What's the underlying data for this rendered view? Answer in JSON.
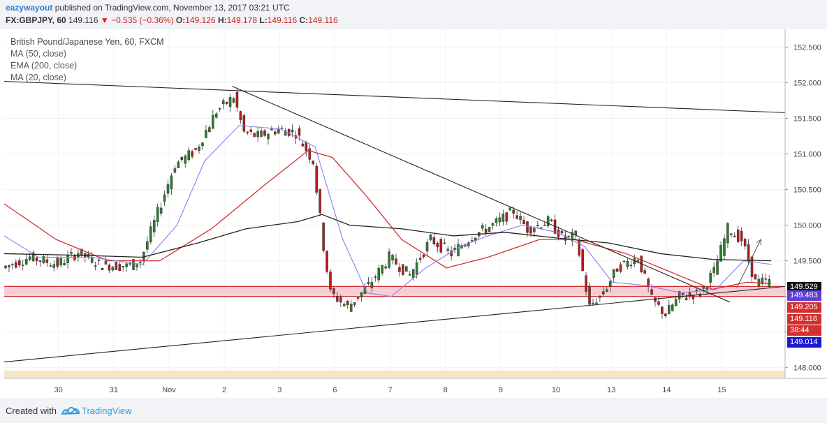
{
  "header": {
    "author": "eazywayout",
    "published_text": "published on TradingView.com, November 13, 2017 03:21 UTC",
    "symbol": "FX:GBPJPY, 60",
    "last": "149.116",
    "change": "−0.535 (−0.36%)",
    "o_label": "O:",
    "o_value": "149.126",
    "h_label": "H:",
    "h_value": "149.178",
    "l_label": "L:",
    "l_value": "149.116",
    "c_label": "C:",
    "c_value": "149.116"
  },
  "legend": {
    "title": "British Pound/Japanese Yen, 60, FXCM",
    "items": [
      "MA (50, close)",
      "EMA (200, close)",
      "MA (20, close)"
    ]
  },
  "footer": {
    "created_with": "Created with",
    "brand": "TradingView"
  },
  "colors": {
    "up": "#2e7d32",
    "down": "#b71c1c",
    "ma50": "#222222",
    "ema200": "#d32f2f",
    "ma20": "#8e7cf0",
    "zone_fill": "#f8c4cc",
    "zone_line": "#d32f2f",
    "band": "#f5e6c4"
  },
  "chart_data": {
    "type": "candlestick",
    "title": "British Pound/Japanese Yen, 60, FXCM",
    "x_tick_labels": [
      "30",
      "31",
      "Nov",
      "2",
      "3",
      "6",
      "7",
      "8",
      "9",
      "10",
      "13",
      "14",
      "15"
    ],
    "y_ticks": [
      "148.000",
      "148.500",
      "149.000",
      "149.500",
      "150.000",
      "150.500",
      "151.000",
      "151.500",
      "152.000",
      "152.500"
    ],
    "ylim": [
      147.85,
      152.75
    ],
    "price_labels": [
      {
        "value": "149.529",
        "color": "#111111"
      },
      {
        "value": "149.483",
        "color": "#5b3fd6"
      },
      {
        "value": "149.205",
        "color": "#d32f2f"
      },
      {
        "value": "149.116",
        "color": "#d32f2f"
      },
      {
        "value": "38:44",
        "color": "#d32f2f"
      },
      {
        "value": "149.014",
        "color": "#1a1ad0"
      }
    ],
    "price_path": [
      [
        0,
        149.4
      ],
      [
        8,
        149.55
      ],
      [
        16,
        149.45
      ],
      [
        22,
        149.62
      ],
      [
        28,
        149.45
      ],
      [
        36,
        149.42
      ],
      [
        40,
        149.5
      ],
      [
        50,
        150.85
      ],
      [
        56,
        151.05
      ],
      [
        62,
        151.6
      ],
      [
        67,
        151.8
      ],
      [
        70,
        151.3
      ],
      [
        74,
        151.25
      ],
      [
        80,
        151.35
      ],
      [
        85,
        151.3
      ],
      [
        90,
        150.9
      ],
      [
        93,
        149.7
      ],
      [
        95,
        149.05
      ],
      [
        100,
        148.85
      ],
      [
        106,
        149.15
      ],
      [
        112,
        149.55
      ],
      [
        118,
        149.3
      ],
      [
        124,
        149.8
      ],
      [
        130,
        149.6
      ],
      [
        136,
        149.85
      ],
      [
        142,
        150.0
      ],
      [
        148,
        150.2
      ],
      [
        152,
        149.95
      ],
      [
        158,
        150.05
      ],
      [
        163,
        149.8
      ],
      [
        166,
        149.85
      ],
      [
        170,
        148.85
      ],
      [
        174,
        149.05
      ],
      [
        178,
        149.4
      ],
      [
        184,
        149.55
      ],
      [
        188,
        148.95
      ],
      [
        192,
        148.75
      ],
      [
        196,
        149.0
      ],
      [
        202,
        149.05
      ],
      [
        206,
        149.35
      ],
      [
        210,
        149.95
      ],
      [
        214,
        149.8
      ],
      [
        218,
        149.2
      ],
      [
        222,
        149.2
      ]
    ],
    "ma50": [
      [
        0,
        149.6
      ],
      [
        20,
        149.58
      ],
      [
        40,
        149.55
      ],
      [
        56,
        149.75
      ],
      [
        70,
        149.95
      ],
      [
        85,
        150.05
      ],
      [
        92,
        150.15
      ],
      [
        100,
        150.0
      ],
      [
        115,
        149.95
      ],
      [
        130,
        149.85
      ],
      [
        145,
        149.9
      ],
      [
        160,
        149.82
      ],
      [
        175,
        149.75
      ],
      [
        190,
        149.6
      ],
      [
        205,
        149.52
      ],
      [
        222,
        149.5
      ]
    ],
    "ema200": [
      [
        0,
        150.3
      ],
      [
        15,
        149.8
      ],
      [
        30,
        149.5
      ],
      [
        45,
        149.5
      ],
      [
        60,
        149.95
      ],
      [
        75,
        150.55
      ],
      [
        88,
        151.05
      ],
      [
        95,
        150.95
      ],
      [
        105,
        150.4
      ],
      [
        115,
        149.8
      ],
      [
        128,
        149.4
      ],
      [
        140,
        149.55
      ],
      [
        155,
        149.8
      ],
      [
        165,
        149.8
      ],
      [
        180,
        149.6
      ],
      [
        195,
        149.3
      ],
      [
        205,
        149.1
      ],
      [
        215,
        149.2
      ],
      [
        222,
        149.18
      ]
    ],
    "ma20": [
      [
        0,
        149.85
      ],
      [
        10,
        149.55
      ],
      [
        25,
        149.55
      ],
      [
        40,
        149.45
      ],
      [
        50,
        150.0
      ],
      [
        58,
        150.9
      ],
      [
        68,
        151.4
      ],
      [
        80,
        151.35
      ],
      [
        90,
        151.1
      ],
      [
        98,
        149.8
      ],
      [
        105,
        149.05
      ],
      [
        112,
        149.0
      ],
      [
        122,
        149.4
      ],
      [
        132,
        149.7
      ],
      [
        140,
        149.85
      ],
      [
        150,
        150.0
      ],
      [
        160,
        149.9
      ],
      [
        168,
        149.7
      ],
      [
        176,
        149.2
      ],
      [
        186,
        149.15
      ],
      [
        196,
        149.05
      ],
      [
        206,
        149.1
      ],
      [
        214,
        149.5
      ],
      [
        222,
        149.45
      ]
    ],
    "support_zone": [
      149.0,
      149.14
    ],
    "lower_band": [
      147.86,
      147.96
    ],
    "trendlines": [
      {
        "name": "upper-trend",
        "from": [
          0,
          152.02
        ],
        "to": [
          226,
          151.58
        ]
      },
      {
        "name": "descending-trend",
        "from": [
          66,
          151.95
        ],
        "to": [
          210,
          148.92
        ]
      },
      {
        "name": "ascending-trend",
        "from": [
          0,
          148.08
        ],
        "to": [
          226,
          149.14
        ]
      }
    ],
    "projection_arrow": {
      "from": [
        212,
        149.12
      ],
      "to": [
        219,
        149.8
      ]
    }
  }
}
